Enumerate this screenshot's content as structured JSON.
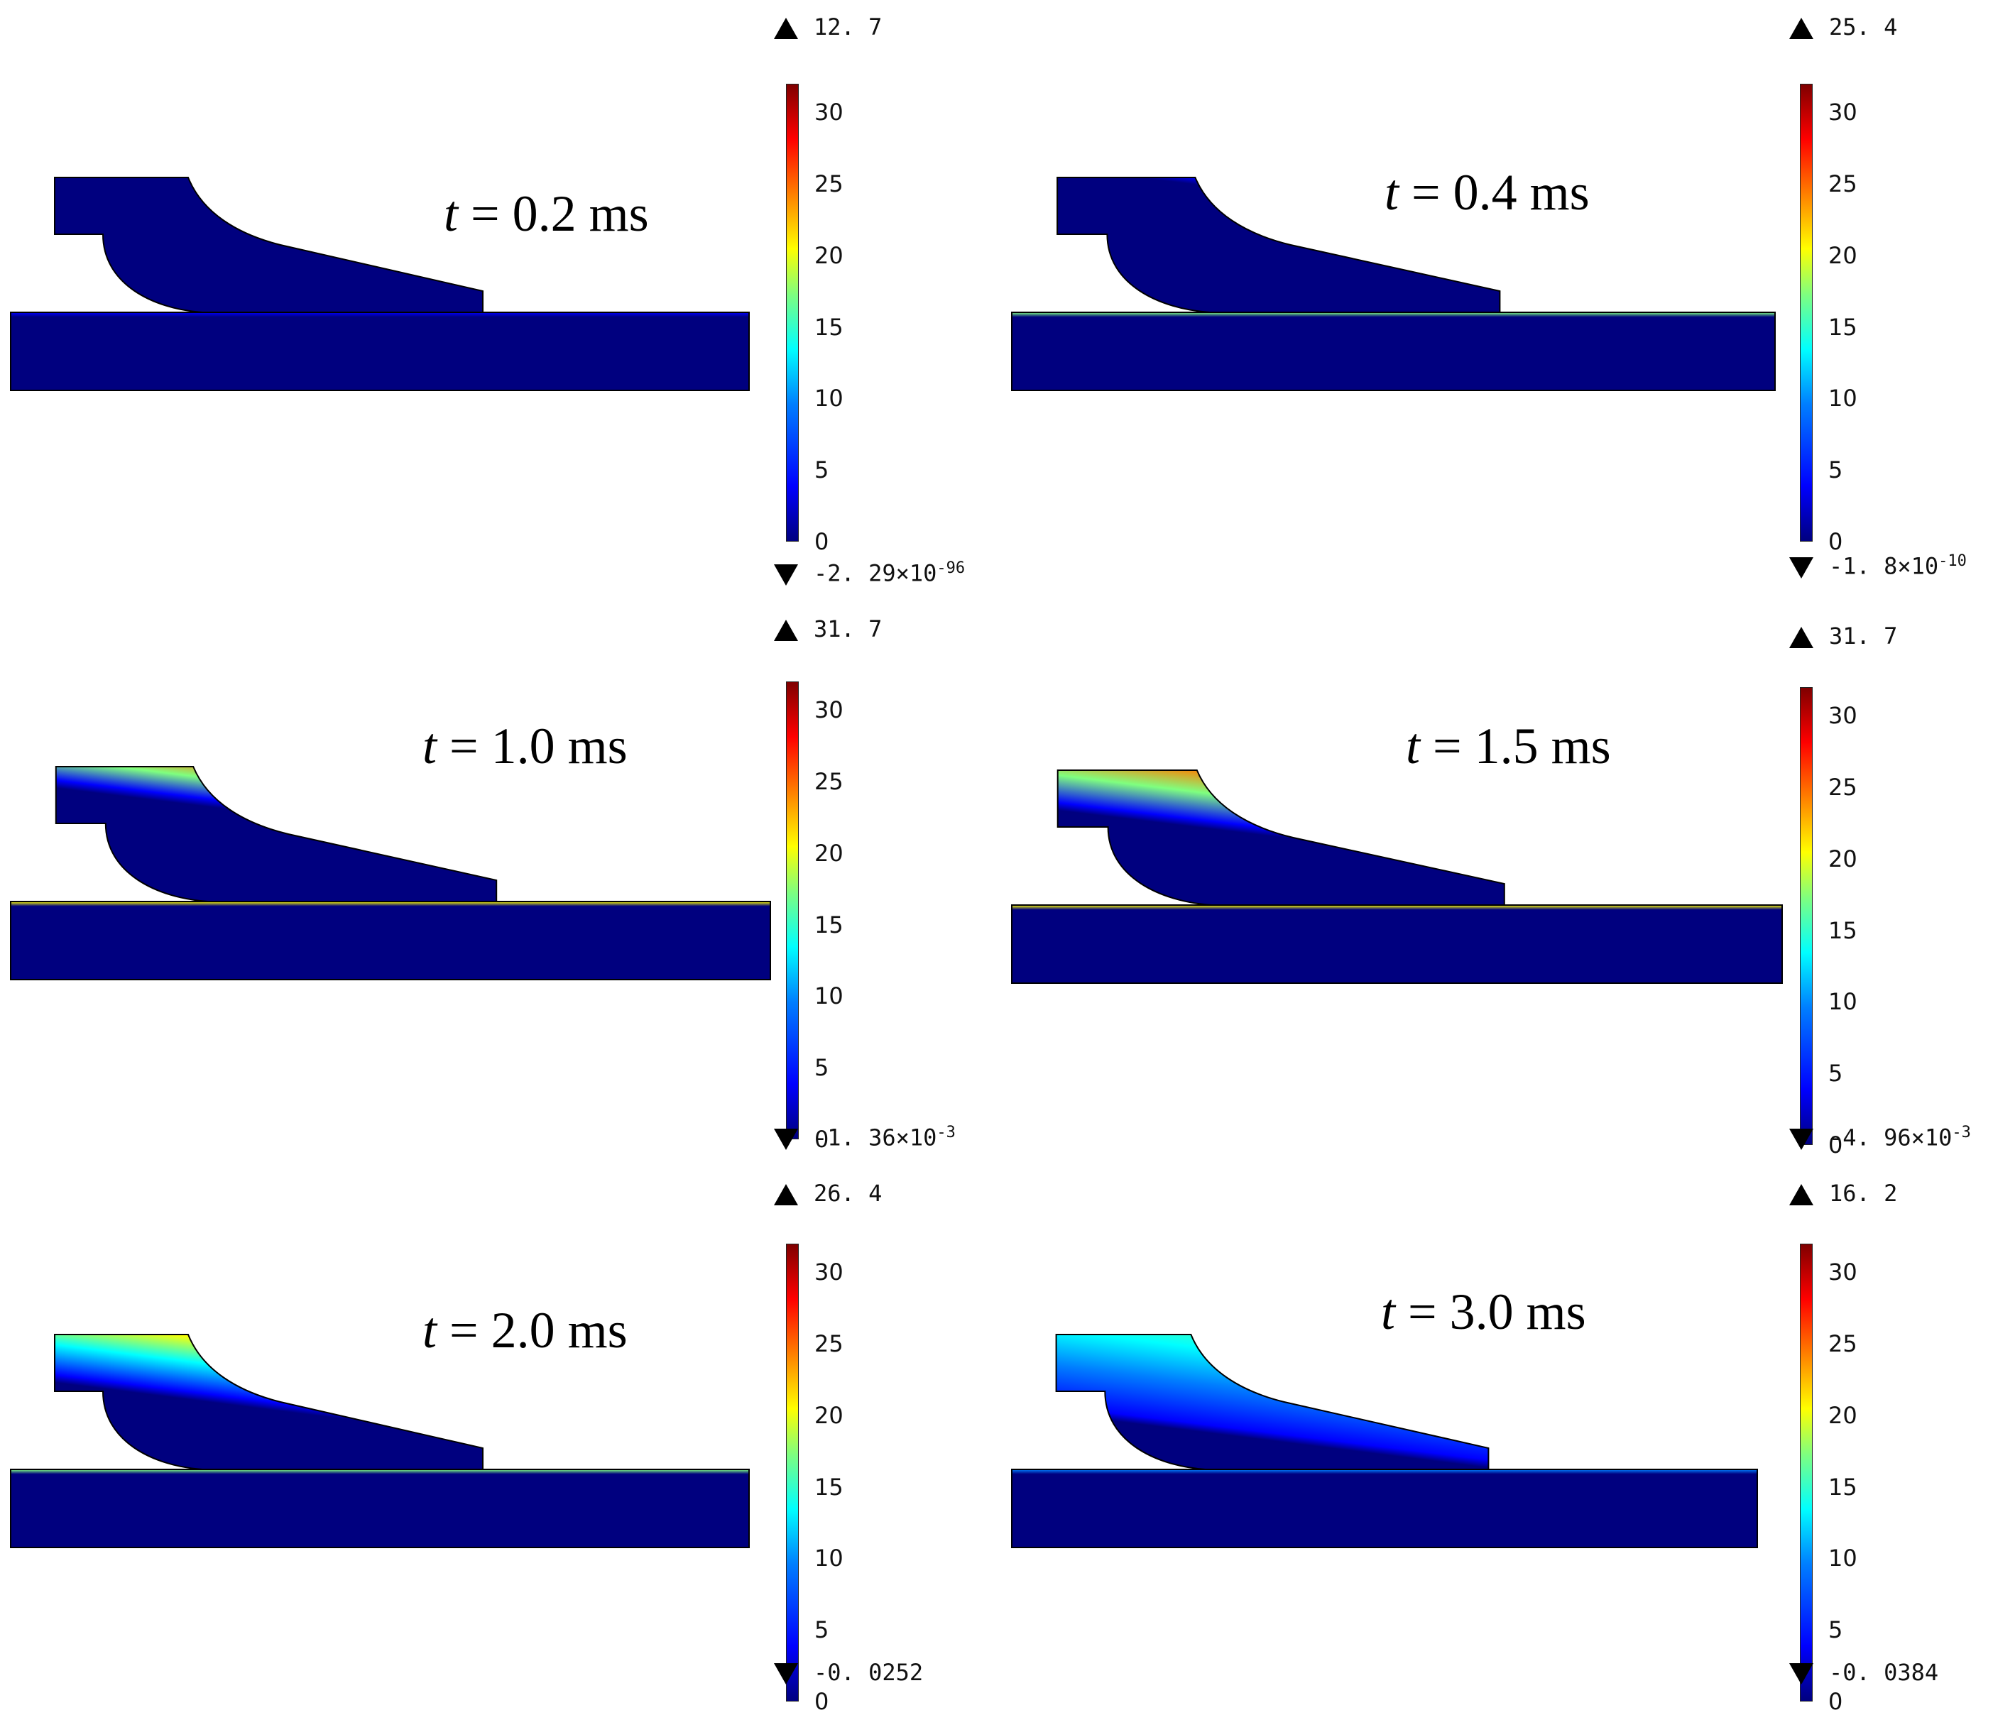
{
  "colorbar_ticks": [
    "30",
    "25",
    "20",
    "15",
    "10",
    "5",
    "0"
  ],
  "panels": [
    {
      "id": "p1",
      "time_label": "= 0.2 ms",
      "time_var": "t",
      "max": "12. 7",
      "min": "-2. 29×10",
      "min_exp": "-96",
      "hot_level": 0.18,
      "front_depth": 0.08
    },
    {
      "id": "p2",
      "time_label": "= 0.4 ms",
      "time_var": "t",
      "max": "25. 4",
      "min": "-1. 8×10",
      "min_exp": "-10",
      "hot_level": 0.75,
      "front_depth": 0.18
    },
    {
      "id": "p3",
      "time_label": "= 1.0 ms",
      "time_var": "t",
      "max": "31. 7",
      "min": "-1. 36×10",
      "min_exp": "-3",
      "hot_level": 1.0,
      "front_depth": 0.38
    },
    {
      "id": "p4",
      "time_label": "= 1.5 ms",
      "time_var": "t",
      "max": "31. 7",
      "min": "-4. 96×10",
      "min_exp": "-3",
      "hot_level": 1.0,
      "front_depth": 0.5
    },
    {
      "id": "p5",
      "time_label": "= 2.0 ms",
      "time_var": "t",
      "max": "26. 4",
      "min": "-0. 0252",
      "min_exp": "",
      "hot_level": 0.82,
      "front_depth": 0.55
    },
    {
      "id": "p6",
      "time_label": "= 3.0 ms",
      "time_var": "t",
      "max": "16. 2",
      "min": "-0. 0384",
      "min_exp": "",
      "hot_level": 0.5,
      "front_depth": 0.75
    }
  ],
  "colors": {
    "cold": "#00007f",
    "scale": [
      "#00007f",
      "#0000ff",
      "#007fff",
      "#00ffff",
      "#7fff7f",
      "#ffff00",
      "#ff7f00",
      "#ff0000",
      "#7f0000"
    ]
  }
}
